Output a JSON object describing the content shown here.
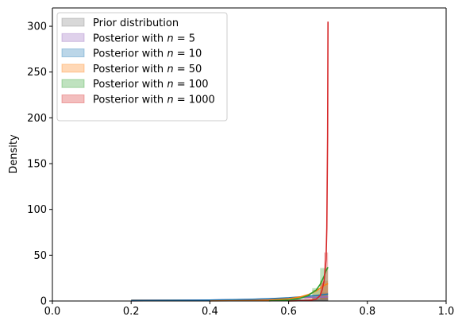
{
  "chart_data": {
    "type": "area",
    "xlabel": "",
    "ylabel": "Density",
    "xlim": [
      0.0,
      1.0
    ],
    "ylim": [
      0,
      320
    ],
    "xticks": [
      0.0,
      0.2,
      0.4,
      0.6,
      0.8,
      1.0
    ],
    "xtick_labels": [
      "0.0",
      "0.2",
      "0.4",
      "0.6",
      "0.8",
      "1.0"
    ],
    "yticks": [
      0,
      50,
      100,
      150,
      200,
      250,
      300
    ],
    "ytick_labels": [
      "0",
      "50",
      "100",
      "150",
      "200",
      "250",
      "300"
    ],
    "grid": false,
    "legend_position": "top-left",
    "series": [
      {
        "name": "Prior distribution",
        "legend_prefix": "Prior distribution",
        "legend_n": "",
        "color": "#7f7f7f",
        "curve": [
          [
            0.2,
            1
          ],
          [
            0.3,
            1
          ],
          [
            0.4,
            1
          ],
          [
            0.5,
            1
          ],
          [
            0.6,
            1
          ],
          [
            0.65,
            1
          ],
          [
            0.7,
            1
          ]
        ],
        "hist": [
          {
            "x0": 0.68,
            "x1": 0.7,
            "h": 3
          }
        ]
      },
      {
        "name": "Posterior with n = 5",
        "legend_prefix": "Posterior with ",
        "legend_n": "5",
        "color": "#9467bd",
        "curve": [
          [
            0.2,
            0.2
          ],
          [
            0.3,
            0.5
          ],
          [
            0.4,
            1
          ],
          [
            0.5,
            1.7
          ],
          [
            0.55,
            2.3
          ],
          [
            0.6,
            3
          ],
          [
            0.64,
            3.6
          ],
          [
            0.67,
            4.1
          ],
          [
            0.69,
            4.4
          ],
          [
            0.7,
            4.5
          ]
        ],
        "hist": [
          {
            "x0": 0.66,
            "x1": 0.68,
            "h": 4
          },
          {
            "x0": 0.68,
            "x1": 0.7,
            "h": 5
          }
        ]
      },
      {
        "name": "Posterior with n = 10",
        "legend_prefix": "Posterior with ",
        "legend_n": "10",
        "color": "#1f77b4",
        "curve": [
          [
            0.2,
            0.3
          ],
          [
            0.3,
            0.6
          ],
          [
            0.4,
            1
          ],
          [
            0.5,
            1.8
          ],
          [
            0.55,
            2.5
          ],
          [
            0.6,
            3.5
          ],
          [
            0.64,
            4.8
          ],
          [
            0.67,
            6
          ],
          [
            0.69,
            7
          ],
          [
            0.7,
            7.5
          ]
        ],
        "hist": [
          {
            "x0": 0.66,
            "x1": 0.68,
            "h": 6
          },
          {
            "x0": 0.68,
            "x1": 0.7,
            "h": 9
          }
        ]
      },
      {
        "name": "Posterior with n = 50",
        "legend_prefix": "Posterior with ",
        "legend_n": "50",
        "color": "#ff7f0e",
        "curve": [
          [
            0.4,
            0.1
          ],
          [
            0.5,
            0.4
          ],
          [
            0.55,
            1
          ],
          [
            0.6,
            2.5
          ],
          [
            0.63,
            4.5
          ],
          [
            0.65,
            7
          ],
          [
            0.67,
            11
          ],
          [
            0.68,
            14
          ],
          [
            0.69,
            17
          ],
          [
            0.7,
            19
          ]
        ],
        "hist": [
          {
            "x0": 0.64,
            "x1": 0.66,
            "h": 6
          },
          {
            "x0": 0.66,
            "x1": 0.68,
            "h": 12
          },
          {
            "x0": 0.68,
            "x1": 0.7,
            "h": 22
          }
        ]
      },
      {
        "name": "Posterior with n = 100",
        "legend_prefix": "Posterior with ",
        "legend_n": "100",
        "color": "#2ca02c",
        "curve": [
          [
            0.55,
            0.1
          ],
          [
            0.6,
            1
          ],
          [
            0.63,
            3
          ],
          [
            0.65,
            6
          ],
          [
            0.67,
            12
          ],
          [
            0.68,
            18
          ],
          [
            0.69,
            27
          ],
          [
            0.695,
            33
          ],
          [
            0.7,
            37
          ]
        ],
        "hist": [
          {
            "x0": 0.66,
            "x1": 0.68,
            "h": 14
          },
          {
            "x0": 0.68,
            "x1": 0.7,
            "h": 36
          }
        ]
      },
      {
        "name": "Posterior with n = 1000",
        "legend_prefix": "Posterior with ",
        "legend_n": "1000",
        "color": "#d62728",
        "curve": [
          [
            0.6,
            0
          ],
          [
            0.65,
            0.5
          ],
          [
            0.67,
            2
          ],
          [
            0.68,
            6
          ],
          [
            0.685,
            12
          ],
          [
            0.69,
            22
          ],
          [
            0.695,
            45
          ],
          [
            0.697,
            80
          ],
          [
            0.699,
            180
          ],
          [
            0.7,
            305
          ]
        ],
        "hist": [
          {
            "x0": 0.68,
            "x1": 0.69,
            "h": 20
          },
          {
            "x0": 0.69,
            "x1": 0.7,
            "h": 53
          }
        ]
      }
    ]
  }
}
